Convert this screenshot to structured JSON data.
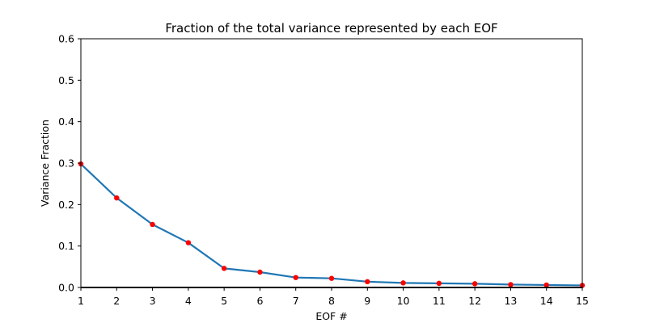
{
  "chart_data": {
    "type": "line",
    "title": "Fraction of the total variance represented by each EOF",
    "xlabel": "EOF #",
    "ylabel": "Variance Fraction",
    "xlim": [
      1,
      15
    ],
    "ylim": [
      0,
      0.6
    ],
    "x_ticks": [
      "1",
      "2",
      "3",
      "4",
      "5",
      "6",
      "7",
      "8",
      "9",
      "10",
      "11",
      "12",
      "13",
      "14",
      "15"
    ],
    "y_ticks": [
      "0.0",
      "0.1",
      "0.2",
      "0.3",
      "0.4",
      "0.5",
      "0.6"
    ],
    "grid": false,
    "x": [
      1,
      2,
      3,
      4,
      5,
      6,
      7,
      8,
      9,
      10,
      11,
      12,
      13,
      14,
      15
    ],
    "series": [
      {
        "values": [
          0.298,
          0.216,
          0.152,
          0.108,
          0.046,
          0.037,
          0.024,
          0.022,
          0.014,
          0.011,
          0.01,
          0.009,
          0.007,
          0.006,
          0.005
        ]
      }
    ],
    "line_color": "#1f77b4",
    "marker_color": "#ff0000",
    "baseline_y": 0
  }
}
